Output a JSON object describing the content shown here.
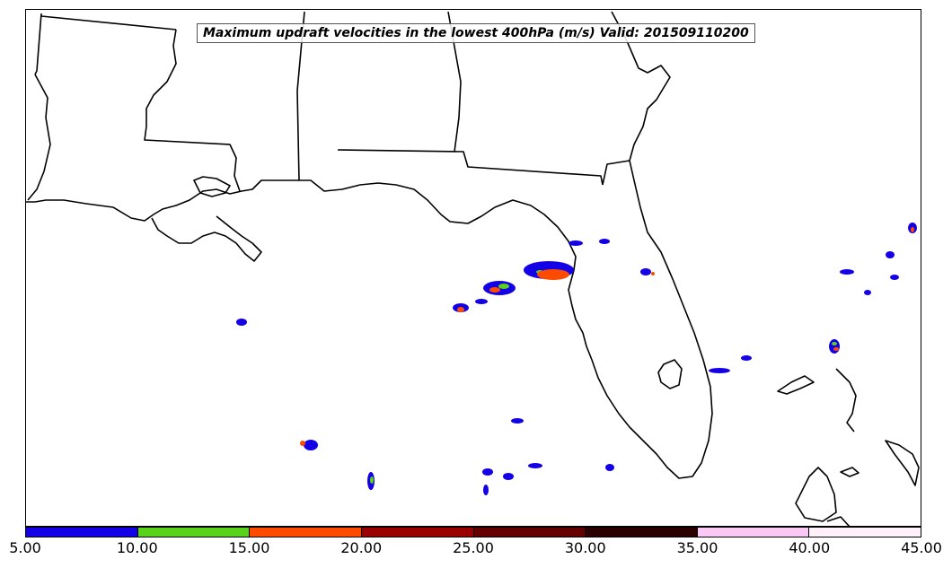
{
  "title": "Maximum updraft velocities in the lowest 400hPa (m/s) Valid: 201509110200",
  "colorbar": {
    "segments": [
      {
        "from": "5.00",
        "to": "10.00",
        "color": "#1400e6"
      },
      {
        "from": "10.00",
        "to": "15.00",
        "color": "#5ad21a"
      },
      {
        "from": "15.00",
        "to": "20.00",
        "color": "#ff4b00"
      },
      {
        "from": "20.00",
        "to": "25.00",
        "color": "#9b0000"
      },
      {
        "from": "25.00",
        "to": "30.00",
        "color": "#640000"
      },
      {
        "from": "30.00",
        "to": "35.00",
        "color": "#2d0000"
      },
      {
        "from": "35.00",
        "to": "40.00",
        "color": "#fac8f5"
      },
      {
        "from": "40.00",
        "to": "45.00",
        "color": "#fff0fa"
      }
    ],
    "tick_labels": [
      "5.00",
      "10.00",
      "15.00",
      "20.00",
      "25.00",
      "30.00",
      "35.00",
      "40.00",
      "45.00"
    ]
  },
  "map": {
    "region": "Southeastern United States and Gulf of Mexico",
    "coastline_color": "#000000",
    "background_color": "#ffffff"
  }
}
